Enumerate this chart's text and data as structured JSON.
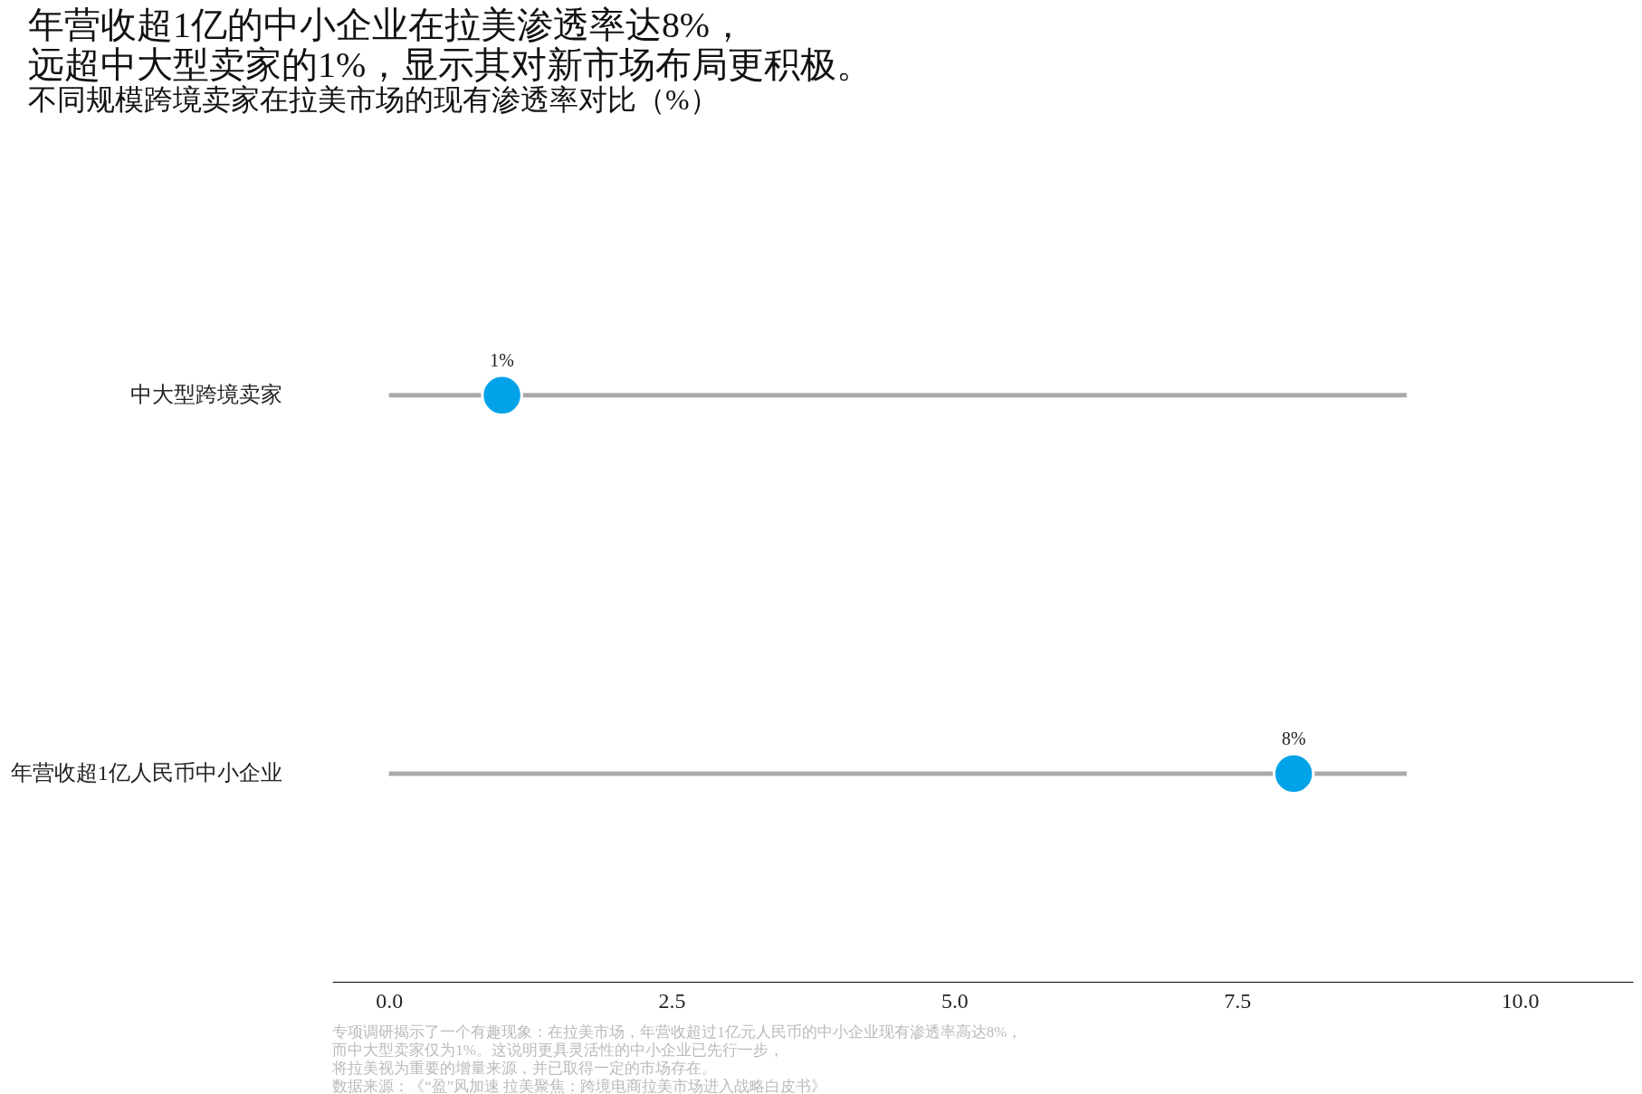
{
  "chart_data": {
    "type": "lollipop",
    "title": [
      "年营收超1亿的中小企业在拉美渗透率达8%，",
      "远超中大型卖家的1%，显示其对新市场布局更积极。"
    ],
    "subtitle": "不同规模跨境卖家在拉美市场的现有渗透率对比（%）",
    "categories": [
      "中大型跨境卖家",
      "年营收超1亿人民币中小企业"
    ],
    "orientation": "horizontal",
    "series": [
      {
        "type": "bar",
        "color": "#aaaaaa",
        "values": [
          9,
          9
        ]
      },
      {
        "color": "#00a2e8",
        "values": [
          1,
          8
        ],
        "value_labels": [
          "1%",
          "8%"
        ]
      }
    ],
    "xlim": [
      -0.5,
      11
    ],
    "xticks": [
      {
        "value": 0,
        "label": "0.0"
      },
      {
        "value": 2.5,
        "label": "2.5"
      },
      {
        "value": 5,
        "label": "5.0"
      },
      {
        "value": 7.5,
        "label": "7.5"
      },
      {
        "value": 10,
        "label": "10.0"
      }
    ],
    "marker": "circle",
    "grid": false,
    "annotations": [
      "专项调研揭示了一个有趣现象：在拉美市场，年营收超过1亿元人民币的中小企业现有渗透率高达8%，",
      "而中大型卖家仅为1%。这说明更具灵活性的中小企业已先行一步，",
      "将拉美视为重要的增量来源，并已取得一定的市场存在。",
      "数据来源：《“盈”风加速 拉美聚焦：跨境电商拉美市场进入战略白皮书》"
    ]
  }
}
